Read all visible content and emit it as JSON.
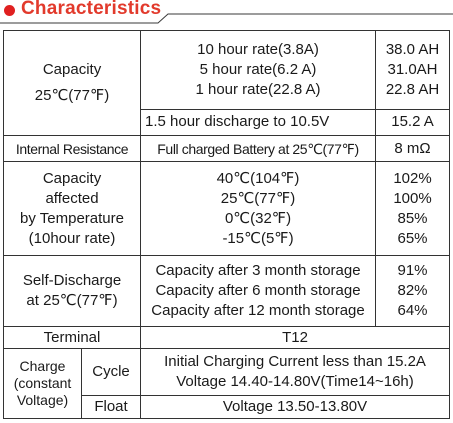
{
  "header": {
    "title": "Characteristics",
    "accent_color": "#e23a2c"
  },
  "capacity": {
    "label_line1": "Capacity",
    "label_line2": "25℃(77℉)",
    "rates": [
      "10 hour rate(3.8A)",
      "5 hour rate(6.2 A)",
      "1 hour rate(22.8 A)"
    ],
    "values": [
      "38.0 AH",
      "31.0AH",
      "22.8 AH"
    ],
    "discharge_label": "1.5 hour discharge to 10.5V",
    "discharge_value": "15.2 A"
  },
  "internal_resistance": {
    "label": "Internal Resistance",
    "condition": "Full charged Battery at 25℃(77℉)",
    "value": "8 mΩ"
  },
  "temperature": {
    "label_lines": [
      "Capacity",
      "affected",
      "by Temperature",
      "(10hour rate)"
    ],
    "temps": [
      "40℃(104℉)",
      "25℃(77℉)",
      "0℃(32℉)",
      "-15℃(5℉)"
    ],
    "values": [
      "102%",
      "100%",
      "85%",
      "65%"
    ]
  },
  "self_discharge": {
    "label_line1": "Self-Discharge",
    "label_line2": "at 25℃(77℉)",
    "storage": [
      "Capacity after 3 month storage",
      "Capacity after 6 month storage",
      "Capacity after 12 month storage"
    ],
    "values": [
      "91%",
      "82%",
      "64%"
    ]
  },
  "terminal": {
    "label": "Terminal",
    "value": "T12"
  },
  "charge": {
    "label_lines": [
      "Charge",
      "(constant",
      "Voltage)"
    ],
    "cycle_label": "Cycle",
    "cycle_lines": [
      "Initial Charging Current less than 15.2A",
      "Voltage 14.40-14.80V(Time14~16h)"
    ],
    "float_label": "Float",
    "float_value": "Voltage 13.50-13.80V"
  }
}
